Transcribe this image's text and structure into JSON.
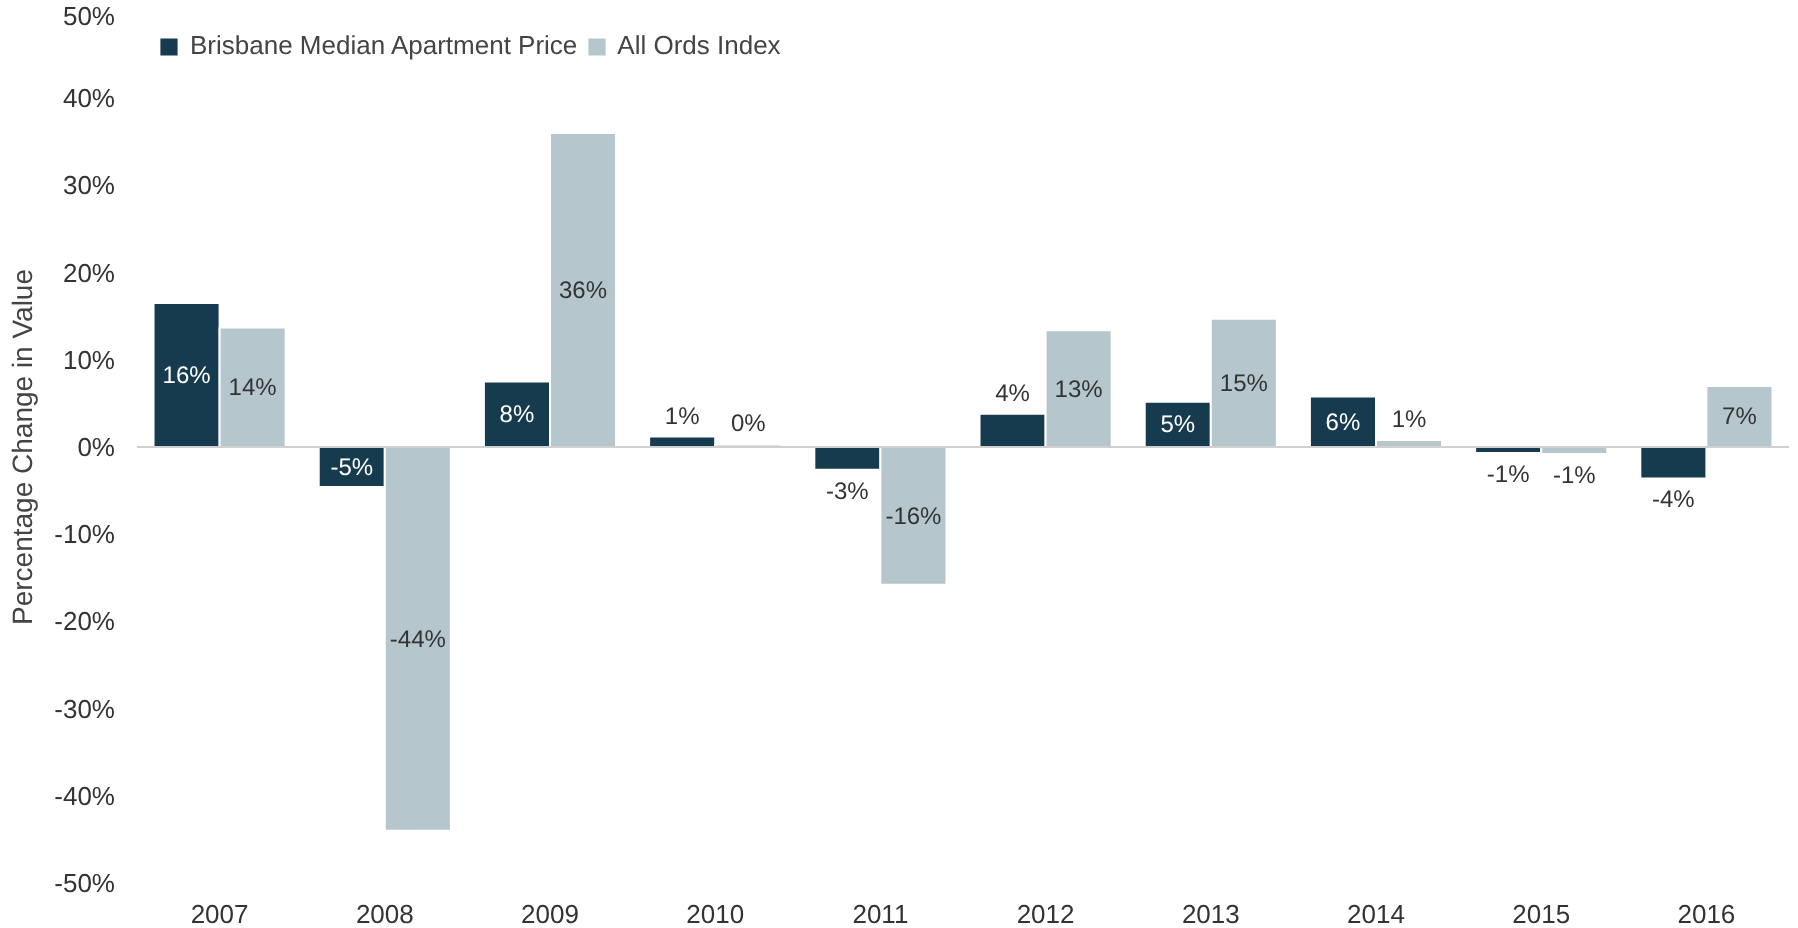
{
  "chart_data": {
    "type": "bar",
    "ylabel": "Percentage Change in Value",
    "categories": [
      "2007",
      "2008",
      "2009",
      "2010",
      "2011",
      "2012",
      "2013",
      "2014",
      "2015",
      "2016"
    ],
    "series": [
      {
        "name": "Brisbane Median Apartment Price",
        "color": "#163b4f",
        "values": [
          16.5,
          -4.6,
          7.5,
          1.2,
          -2.6,
          3.8,
          5.2,
          5.8,
          -0.7,
          -3.6
        ],
        "value_labels": [
          "16%",
          "-5%",
          "8%",
          "1%",
          "-3%",
          "4%",
          "5%",
          "6%",
          "-1%",
          "-4%"
        ]
      },
      {
        "name": "All Ords Index",
        "color": "#b5c6cc",
        "values": [
          13.7,
          -44.0,
          36.0,
          0.3,
          -15.8,
          13.4,
          14.7,
          0.8,
          -0.8,
          7.0
        ],
        "value_labels": [
          "14%",
          "-44%",
          "36%",
          "0%",
          "-16%",
          "13%",
          "15%",
          "1%",
          "-1%",
          "7%"
        ]
      }
    ],
    "ylim": [
      -50,
      50
    ],
    "yticks": [
      {
        "value": -50,
        "label": "-50%"
      },
      {
        "value": -40,
        "label": "-40%"
      },
      {
        "value": -30,
        "label": "-30%"
      },
      {
        "value": -20,
        "label": "-20%"
      },
      {
        "value": -10,
        "label": "-10%"
      },
      {
        "value": 0,
        "label": "0%"
      },
      {
        "value": 10,
        "label": "10%"
      },
      {
        "value": 20,
        "label": "20%"
      },
      {
        "value": 30,
        "label": "30%"
      },
      {
        "value": 40,
        "label": "40%"
      },
      {
        "value": 50,
        "label": "50%"
      }
    ],
    "legend": "top left"
  }
}
